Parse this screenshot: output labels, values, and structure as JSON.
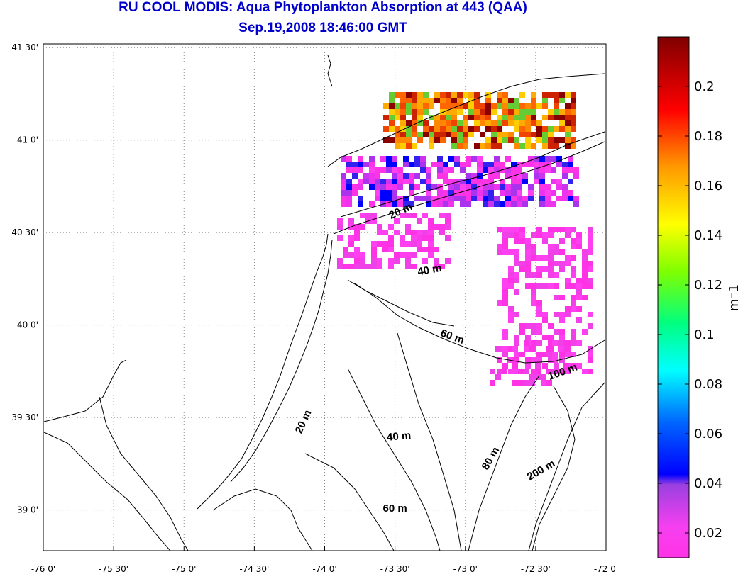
{
  "title": "RU COOL MODIS: Aqua Phytoplankton Absorption at 443 (QAA)",
  "subtitle": "Sep.19,2008 18:46:00 GMT",
  "map": {
    "lon_ticks": [
      "-76 0'",
      "-75 30'",
      "-75 0'",
      "-74 30'",
      "-74 0'",
      "-73 30'",
      "-73 0'",
      "-72 30'",
      "-72 0'"
    ],
    "lat_ticks": [
      "39 0'",
      "39 30'",
      "40 0'",
      "40 30'",
      "41 0'",
      "41 30'"
    ],
    "lon_range": [
      -76,
      -72
    ],
    "lat_range": [
      38.78,
      41.52
    ],
    "grid": "dotted",
    "contour_labels": [
      {
        "text": "20 m",
        "lon": -73.45,
        "lat": 40.6,
        "angle": -25
      },
      {
        "text": "40 m",
        "lon": -73.25,
        "lat": 40.28,
        "angle": -10
      },
      {
        "text": "60 m",
        "lon": -73.1,
        "lat": 39.92,
        "angle": 20
      },
      {
        "text": "100 m",
        "lon": -72.3,
        "lat": 39.73,
        "angle": -20
      },
      {
        "text": "20 m",
        "lon": -74.13,
        "lat": 39.47,
        "angle": -65
      },
      {
        "text": "40 m",
        "lon": -73.47,
        "lat": 39.38,
        "angle": -5
      },
      {
        "text": "80 m",
        "lon": -72.8,
        "lat": 39.27,
        "angle": -60
      },
      {
        "text": "200 m",
        "lon": -72.45,
        "lat": 39.2,
        "angle": -30
      },
      {
        "text": "60 m",
        "lon": -73.5,
        "lat": 38.99,
        "angle": 0
      }
    ]
  },
  "colorbar": {
    "label": "m⁻1",
    "ticks": [
      "0.02",
      "0.04",
      "0.06",
      "0.08",
      "0.1",
      "0.12",
      "0.14",
      "0.16",
      "0.18",
      "0.2"
    ],
    "range": [
      0.01,
      0.22
    ]
  },
  "colors": {
    "title": "#0000cc"
  }
}
